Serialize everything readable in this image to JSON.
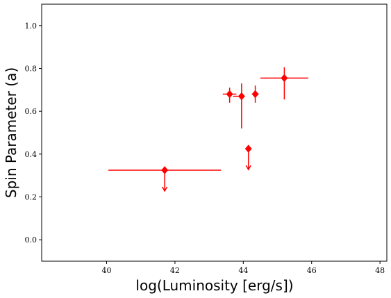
{
  "chart_data": {
    "type": "scatter",
    "title": "",
    "xlabel": "log(Luminosity [erg/s])",
    "ylabel": "Spin Parameter (a)",
    "xlim": [
      38.1,
      48.2
    ],
    "ylim": [
      -0.1,
      1.1
    ],
    "xticks": [
      40,
      42,
      44,
      46,
      48
    ],
    "xtick_labels": [
      "40",
      "42",
      "44",
      "46",
      "48"
    ],
    "yticks": [
      0.0,
      0.2,
      0.4,
      0.6,
      0.8,
      1.0
    ],
    "ytick_labels": [
      "0.0",
      "0.2",
      "0.4",
      "0.6",
      "0.8",
      "1.0"
    ],
    "grid": false,
    "marker": "diamond",
    "color": "#ff0000",
    "points": [
      {
        "x": 41.7,
        "y": 0.325,
        "xerr_low": 1.65,
        "xerr_high": 1.65,
        "yerr_low": 0,
        "yerr_high": 0,
        "upper_limit": true
      },
      {
        "x": 43.6,
        "y": 0.68,
        "xerr_low": 0.2,
        "xerr_high": 0.2,
        "yerr_low": 0.04,
        "yerr_high": 0.03,
        "upper_limit": false
      },
      {
        "x": 43.95,
        "y": 0.67,
        "xerr_low": 0.25,
        "xerr_high": 0.0,
        "yerr_low": 0.15,
        "yerr_high": 0.06,
        "upper_limit": false
      },
      {
        "x": 44.15,
        "y": 0.425,
        "xerr_low": 0,
        "xerr_high": 0,
        "yerr_low": 0,
        "yerr_high": 0,
        "upper_limit": true
      },
      {
        "x": 44.35,
        "y": 0.68,
        "xerr_low": 0.1,
        "xerr_high": 0.1,
        "yerr_low": 0.04,
        "yerr_high": 0.04,
        "upper_limit": false
      },
      {
        "x": 45.2,
        "y": 0.755,
        "xerr_low": 0.7,
        "xerr_high": 0.7,
        "yerr_low": 0.1,
        "yerr_high": 0.05,
        "upper_limit": false
      }
    ]
  }
}
